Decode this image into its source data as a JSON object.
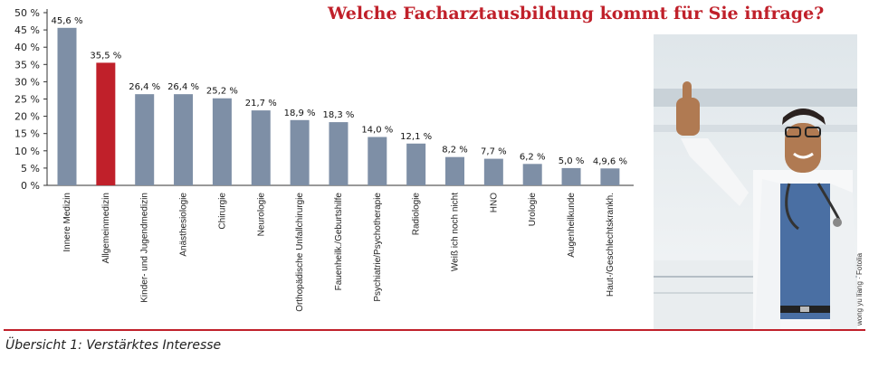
{
  "title": "Welche Facharztausbildung kommt für Sie infrage?",
  "caption": "Übersicht 1: Verstärktes Interesse",
  "photo_credit": "wong yu liang · Fotolia",
  "colors": {
    "bar": "#7e8fa6",
    "highlight": "#c0202a",
    "title": "#c0202a"
  },
  "chart_data": {
    "type": "bar",
    "title": "Welche Facharztausbildung kommt für Sie infrage?",
    "xlabel": "",
    "ylabel": "",
    "ylim": [
      0,
      50
    ],
    "yticks": [
      0,
      5,
      10,
      15,
      20,
      25,
      30,
      35,
      40,
      45,
      50
    ],
    "ytick_labels": [
      "0 %",
      "5 %",
      "10 %",
      "15 %",
      "20 %",
      "25 %",
      "30 %",
      "35 %",
      "40 %",
      "45 %",
      "50 %"
    ],
    "grid": false,
    "categories": [
      "Innere Medizin",
      "Allgemeinmedizin",
      "Kinder- und Jugendmedizin",
      "Anästhesiologie",
      "Chirurgie",
      "Neurologie",
      "Orthopädische Unfallchirurgie",
      "Fauenheilk./Geburtshilfe",
      "Psychiatrie/Psychotherapie",
      "Radiologie",
      "Weiß ich noch nicht",
      "HNO",
      "Urologie",
      "Augenheilkunde",
      "Haut-/Geschlechtskrankh."
    ],
    "values": [
      45.6,
      35.5,
      26.4,
      26.4,
      25.2,
      21.7,
      18.9,
      18.3,
      14.0,
      12.1,
      8.2,
      7.7,
      6.2,
      5.0,
      4.9
    ],
    "data_labels": [
      "45,6 %",
      "35,5 %",
      "26,4 %",
      "26,4 %",
      "25,2 %",
      "21,7 %",
      "18,9 %",
      "18,3 %",
      "14,0 %",
      "12,1 %",
      "8,2 %",
      "7,7 %",
      "6,2 %",
      "5,0 %",
      "4,9,6 %"
    ],
    "highlight_index": 1
  }
}
